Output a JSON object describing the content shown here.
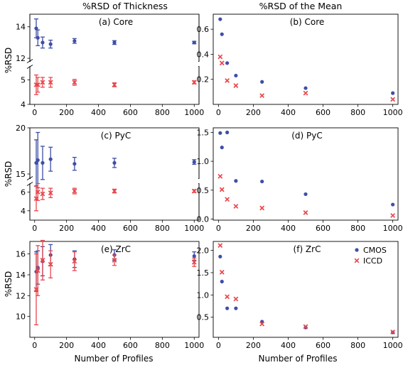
{
  "figure": {
    "col_titles": [
      "%RSD of Thickness",
      "%RSD of the Mean"
    ],
    "ylabel_left": "%RSD",
    "xlabel": "Number of Profiles",
    "legend": [
      {
        "name": "CMOS",
        "color": "#3f4fa6",
        "marker": "dot"
      },
      {
        "name": "ICCD",
        "color": "#e8474c",
        "marker": "x"
      }
    ]
  },
  "chart_data": [
    {
      "id": "a",
      "type": "scatter",
      "error_bars": true,
      "broken_axis": true,
      "title": "(a) Core",
      "xlim": [
        -30,
        1030
      ],
      "xticks": [
        0,
        200,
        400,
        600,
        800,
        1000
      ],
      "upper": {
        "ylim": [
          11.8,
          14.8
        ],
        "yticks": [
          12,
          14
        ]
      },
      "lower": {
        "ylim": [
          4.0,
          5.55
        ],
        "yticks": [
          4,
          5
        ]
      },
      "series": [
        {
          "name": "CMOS",
          "segment": "upper",
          "x": [
            10,
            20,
            50,
            100,
            250,
            500,
            1000
          ],
          "y": [
            13.9,
            13.3,
            13.0,
            12.9,
            13.1,
            13.0,
            13.0
          ],
          "err": [
            0.6,
            0.5,
            0.35,
            0.25,
            0.15,
            0.12,
            0.08
          ]
        },
        {
          "name": "ICCD",
          "segment": "lower",
          "x": [
            10,
            20,
            50,
            100,
            250,
            500,
            1000
          ],
          "y": [
            4.8,
            4.8,
            4.9,
            4.9,
            4.9,
            4.8,
            4.9
          ],
          "err": [
            0.4,
            0.3,
            0.2,
            0.2,
            0.12,
            0.08,
            0.06
          ]
        }
      ]
    },
    {
      "id": "b",
      "type": "scatter",
      "title": "(b) Core",
      "xlim": [
        -30,
        1030
      ],
      "xticks": [
        0,
        200,
        400,
        600,
        800,
        1000
      ],
      "ylim": [
        0,
        0.72
      ],
      "yticks": [
        0.2,
        0.4,
        0.6
      ],
      "series": [
        {
          "name": "CMOS",
          "x": [
            10,
            20,
            50,
            100,
            250,
            500,
            1000
          ],
          "y": [
            0.68,
            0.56,
            0.33,
            0.23,
            0.18,
            0.13,
            0.09
          ]
        },
        {
          "name": "ICCD",
          "x": [
            10,
            20,
            50,
            100,
            250,
            500,
            1000
          ],
          "y": [
            0.38,
            0.33,
            0.19,
            0.15,
            0.07,
            0.09,
            0.04
          ]
        }
      ]
    },
    {
      "id": "c",
      "type": "scatter",
      "error_bars": true,
      "broken_axis": true,
      "title": "(c) PyC",
      "xlim": [
        -30,
        1030
      ],
      "xticks": [
        0,
        200,
        400,
        600,
        800,
        1000
      ],
      "upper": {
        "ylim": [
          14.5,
          20
        ],
        "yticks": [
          15,
          20
        ]
      },
      "lower": {
        "ylim": [
          3.0,
          6.9
        ],
        "yticks": [
          4,
          6
        ]
      },
      "series": [
        {
          "name": "CMOS",
          "segment": "upper",
          "x": [
            10,
            20,
            50,
            100,
            250,
            500,
            1000
          ],
          "y": [
            16.2,
            16.5,
            16.2,
            16.6,
            16.1,
            16.2,
            16.3
          ],
          "err": [
            2.5,
            3.0,
            1.8,
            1.3,
            0.7,
            0.5,
            0.25
          ]
        },
        {
          "name": "ICCD",
          "segment": "lower",
          "x": [
            10,
            20,
            50,
            100,
            250,
            500,
            1000
          ],
          "y": [
            5.3,
            6.0,
            5.8,
            5.9,
            6.1,
            6.1,
            6.1
          ],
          "err": [
            1.3,
            0.9,
            0.6,
            0.5,
            0.3,
            0.2,
            0.15
          ]
        }
      ]
    },
    {
      "id": "d",
      "type": "scatter",
      "title": "(d) PyC",
      "xlim": [
        -30,
        1030
      ],
      "xticks": [
        0,
        200,
        400,
        600,
        800,
        1000
      ],
      "ylim": [
        -0.02,
        1.58
      ],
      "yticks": [
        0.0,
        0.5,
        1.0,
        1.5
      ],
      "series": [
        {
          "name": "CMOS",
          "x": [
            10,
            20,
            50,
            100,
            250,
            500,
            1000
          ],
          "y": [
            1.49,
            1.24,
            1.5,
            0.66,
            0.65,
            0.43,
            0.25
          ]
        },
        {
          "name": "ICCD",
          "x": [
            10,
            20,
            50,
            100,
            250,
            500,
            1000
          ],
          "y": [
            0.74,
            0.51,
            0.34,
            0.22,
            0.19,
            0.11,
            0.06
          ]
        }
      ]
    },
    {
      "id": "e",
      "type": "scatter",
      "error_bars": true,
      "title": "(e) ZrC",
      "xlim": [
        -30,
        1030
      ],
      "xticks": [
        0,
        200,
        400,
        600,
        800,
        1000
      ],
      "ylim": [
        8.0,
        17.2
      ],
      "yticks": [
        10,
        12,
        14,
        16
      ],
      "series": [
        {
          "name": "CMOS",
          "x": [
            10,
            20,
            50,
            100,
            250,
            500,
            1000
          ],
          "y": [
            14.3,
            14.7,
            15.3,
            15.9,
            15.5,
            15.9,
            15.8
          ],
          "err": [
            1.9,
            1.6,
            1.4,
            1.0,
            0.8,
            0.5,
            0.4
          ]
        },
        {
          "name": "ICCD",
          "x": [
            10,
            20,
            50,
            100,
            250,
            500,
            1000
          ],
          "y": [
            12.6,
            14.4,
            15.4,
            15.0,
            15.3,
            15.4,
            15.2
          ],
          "err": [
            3.4,
            2.4,
            1.9,
            1.3,
            0.9,
            0.5,
            0.4
          ]
        }
      ]
    },
    {
      "id": "f",
      "type": "scatter",
      "title": "(f) ZrC",
      "xlim": [
        -30,
        1030
      ],
      "xticks": [
        0,
        200,
        400,
        600,
        800,
        1000
      ],
      "ylim": [
        0.05,
        2.2
      ],
      "yticks": [
        0.5,
        1.0,
        1.5,
        2.0
      ],
      "legend": "top-right",
      "series": [
        {
          "name": "CMOS",
          "x": [
            10,
            20,
            50,
            100,
            250,
            500,
            1000
          ],
          "y": [
            1.86,
            1.3,
            0.7,
            0.7,
            0.4,
            0.27,
            0.16
          ]
        },
        {
          "name": "ICCD",
          "x": [
            10,
            20,
            50,
            100,
            250,
            500,
            1000
          ],
          "y": [
            2.11,
            1.51,
            0.96,
            0.91,
            0.35,
            0.29,
            0.17
          ]
        }
      ]
    }
  ]
}
